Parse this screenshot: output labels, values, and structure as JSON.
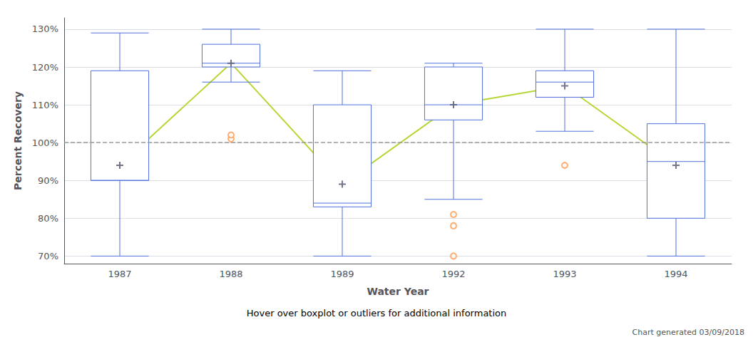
{
  "chart_data": {
    "type": "boxplot",
    "xlabel": "Water Year",
    "ylabel": "Percent Recovery",
    "subtitle": "Hover over boxplot or outliers for additional information",
    "footnote": "Chart generated 03/09/2018",
    "categories": [
      "1987",
      "1988",
      "1989",
      "1992",
      "1993",
      "1994"
    ],
    "series": [
      {
        "type": "boxplot",
        "values": [
          {
            "whisker_low": 70,
            "q1": 90,
            "median": 90,
            "q3": 119,
            "whisker_high": 129
          },
          {
            "whisker_low": 116,
            "q1": 120,
            "median": 121,
            "q3": 126,
            "whisker_high": 130
          },
          {
            "whisker_low": 70,
            "q1": 83,
            "median": 84,
            "q3": 110,
            "whisker_high": 119
          },
          {
            "whisker_low": 85,
            "q1": 106,
            "median": 110,
            "q3": 120,
            "whisker_high": 121
          },
          {
            "whisker_low": 103,
            "q1": 112,
            "median": 116,
            "q3": 119,
            "whisker_high": 130
          },
          {
            "whisker_low": 70,
            "q1": 80,
            "median": 95,
            "q3": 105,
            "whisker_high": 130
          }
        ]
      },
      {
        "type": "line",
        "marker": "plus",
        "values": [
          94,
          121,
          89,
          110,
          115,
          94
        ]
      },
      {
        "type": "scatter",
        "marker": "open_circle",
        "values": [
          [],
          [
            101,
            102
          ],
          [],
          [
            81,
            78,
            70
          ],
          [
            94
          ],
          []
        ]
      }
    ],
    "reference_line": {
      "value": 100,
      "line_style": "dashed",
      "color": "#999999"
    },
    "ylim": [
      68,
      133
    ],
    "yticks": [
      {
        "value": 70,
        "label": "70%"
      },
      {
        "value": 80,
        "label": "80%"
      },
      {
        "value": 90,
        "label": "90%"
      },
      {
        "value": 100,
        "label": "100%"
      },
      {
        "value": 110,
        "label": "110%"
      },
      {
        "value": 120,
        "label": "120%"
      },
      {
        "value": 130,
        "label": "130%"
      }
    ],
    "grid": true
  }
}
